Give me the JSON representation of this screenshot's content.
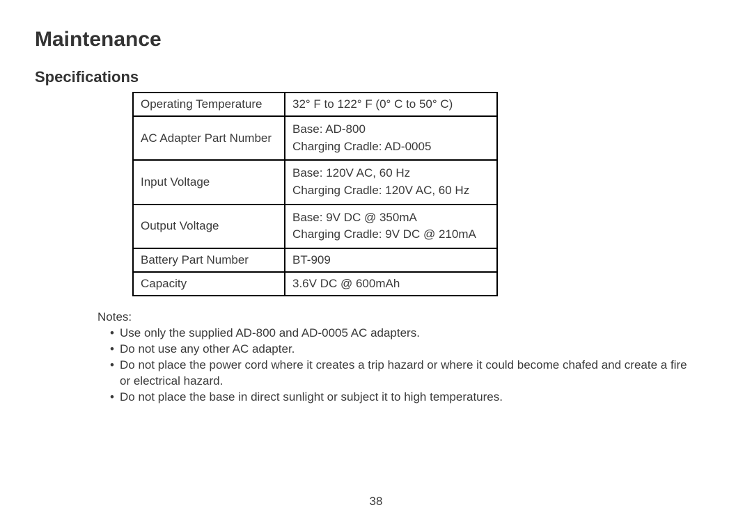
{
  "page": {
    "heading1": "Maintenance",
    "heading2": "Specifications",
    "notes_label": "Notes:",
    "page_number": "38"
  },
  "spec_table": {
    "rows": [
      {
        "label": "Operating Temperature",
        "value": "32° F to 122° F (0° C to 50° C)"
      },
      {
        "label": "AC Adapter Part Number",
        "value": "Base: AD-800\nCharging Cradle: AD-0005"
      },
      {
        "label": "Input Voltage",
        "value": "Base: 120V AC, 60 Hz\nCharging Cradle: 120V AC, 60 Hz"
      },
      {
        "label": "Output Voltage",
        "value": "Base: 9V DC @ 350mA\nCharging Cradle: 9V DC @ 210mA"
      },
      {
        "label": "Battery Part Number",
        "value": "BT-909"
      },
      {
        "label": "Capacity",
        "value": "3.6V DC @ 600mAh"
      }
    ]
  },
  "notes": {
    "items": [
      "Use only the supplied AD-800 and AD-0005 AC adapters.",
      "Do not use any other AC adapter.",
      "Do not place the power cord where it creates a trip hazard or where it could become chafed and create a fire or electrical hazard.",
      "Do not place the base in direct sunlight or subject it to high temperatures."
    ]
  },
  "style": {
    "text_color": "#3a3a3a",
    "heading_color": "#333333",
    "background_color": "#ffffff",
    "border_color": "#000000",
    "heading1_fontsize": 30,
    "heading2_fontsize": 22,
    "body_fontsize": 17,
    "table_col1_width": 218,
    "table_col2_width": 305
  }
}
